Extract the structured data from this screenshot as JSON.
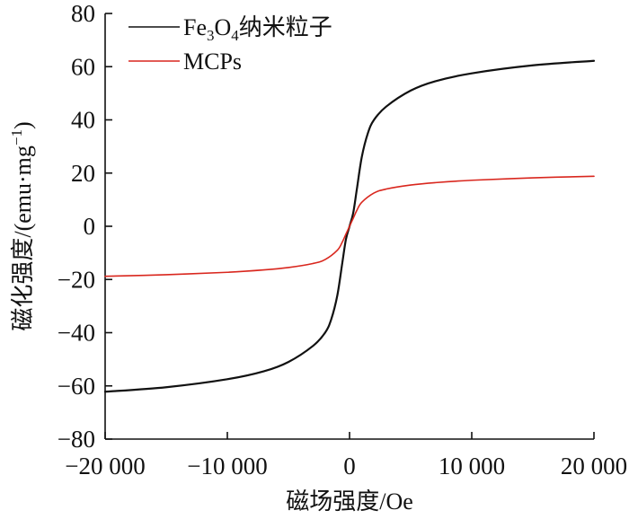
{
  "chart_data": {
    "type": "line",
    "xlabel": "磁场强度/Oe",
    "ylabel": "磁化强度/(emu·mg",
    "ylabel_sup": "−1",
    "ylabel_close": ")",
    "xlim": [
      -20000,
      20000
    ],
    "ylim": [
      -80,
      80
    ],
    "x_ticks": [
      -20000,
      -10000,
      0,
      10000,
      20000
    ],
    "x_tick_labels": [
      "−20 000",
      "−10 000",
      "0",
      "10 000",
      "20 000"
    ],
    "y_ticks": [
      -80,
      -60,
      -40,
      -20,
      0,
      20,
      40,
      60,
      80
    ],
    "y_tick_labels": [
      "−80",
      "−60",
      "−40",
      "−20",
      "0",
      "20",
      "40",
      "60",
      "80"
    ],
    "grid": false,
    "legend_position": "top-left",
    "series": [
      {
        "name": "Fe3O4纳米粒子",
        "name_parts": {
          "base1": "Fe",
          "sub1": "3",
          "base2": "O",
          "sub2": "4",
          "rest": "纳米粒子"
        },
        "color": "#111111",
        "x": [
          -20000,
          -15000,
          -10000,
          -7000,
          -5000,
          -3000,
          -2000,
          -1500,
          -1000,
          -600,
          -300,
          0,
          300,
          600,
          1000,
          1500,
          2000,
          3000,
          5000,
          7000,
          10000,
          15000,
          20000
        ],
        "y": [
          -62.2,
          -60.5,
          -57.5,
          -54.5,
          -51.0,
          -45.0,
          -40.0,
          -35.0,
          -26.0,
          -14.0,
          -5.0,
          0,
          5.0,
          14.0,
          26.0,
          35.0,
          40.0,
          45.0,
          51.0,
          54.5,
          57.5,
          60.5,
          62.2
        ]
      },
      {
        "name": "MCPs",
        "color": "#d9271e",
        "x": [
          -20000,
          -15000,
          -10000,
          -7000,
          -5000,
          -3000,
          -2000,
          -1000,
          -600,
          -300,
          0,
          300,
          600,
          1000,
          2000,
          3000,
          5000,
          7000,
          10000,
          15000,
          20000
        ],
        "y": [
          -18.8,
          -18.2,
          -17.3,
          -16.4,
          -15.5,
          -14.0,
          -12.5,
          -9.0,
          -6.0,
          -3.0,
          0,
          3.0,
          6.0,
          9.0,
          12.5,
          14.0,
          15.5,
          16.4,
          17.3,
          18.2,
          18.8
        ]
      }
    ]
  }
}
